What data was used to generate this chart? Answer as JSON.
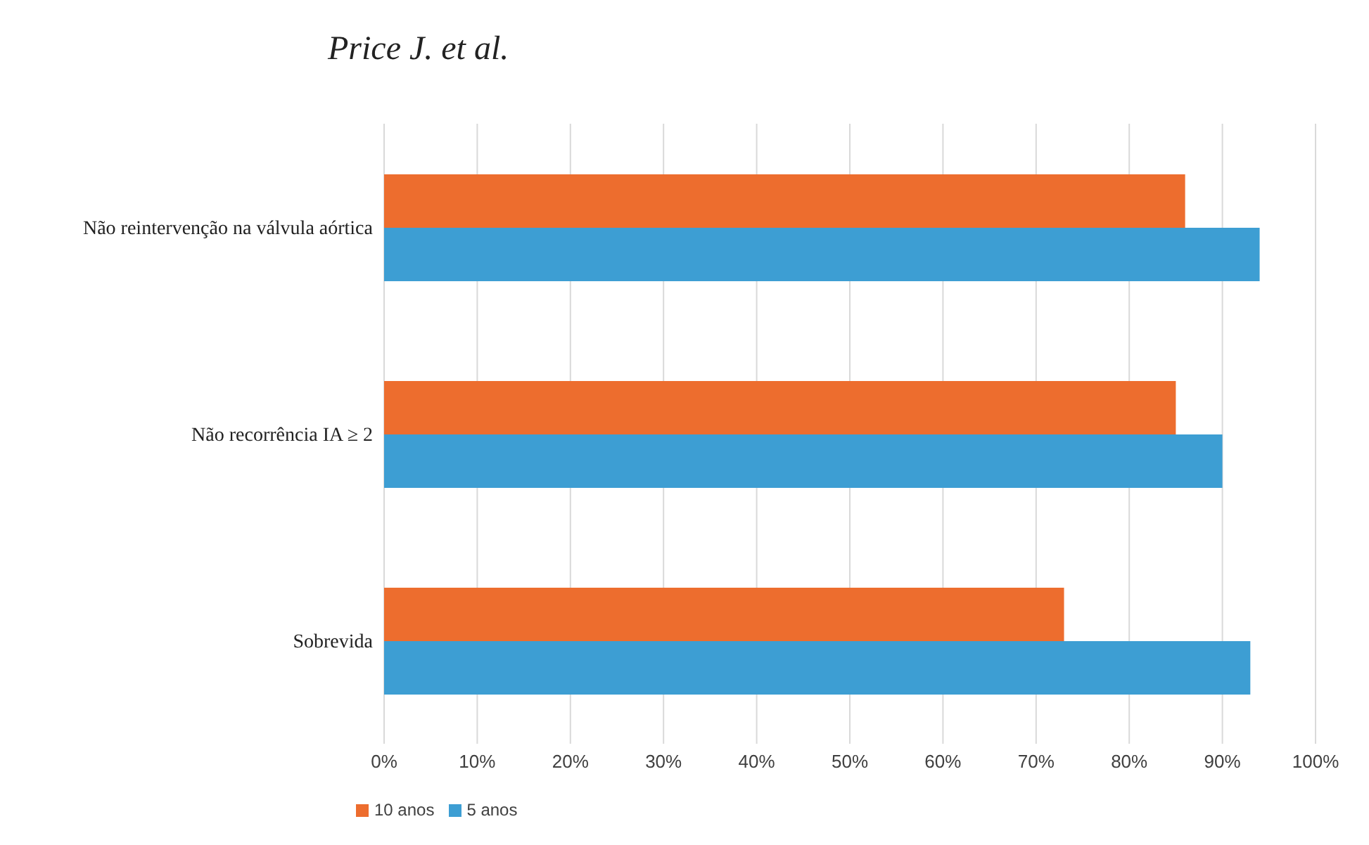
{
  "chart_data": {
    "type": "bar",
    "orientation": "horizontal",
    "title": "Price J. et al.",
    "categories": [
      "Não reintervenção na válvula aórtica",
      "Não recorrência IA ≥ 2",
      "Sobrevida"
    ],
    "series": [
      {
        "name": "10 anos",
        "color": "#ed6d2e",
        "values": [
          86,
          85,
          73
        ]
      },
      {
        "name": "5 anos",
        "color": "#3d9ed3",
        "values": [
          94,
          90,
          93
        ]
      }
    ],
    "xlim": [
      0,
      100
    ],
    "xticks": [
      {
        "value": 0,
        "label": "0%"
      },
      {
        "value": 10,
        "label": "10%"
      },
      {
        "value": 20,
        "label": "20%"
      },
      {
        "value": 30,
        "label": "30%"
      },
      {
        "value": 40,
        "label": "40%"
      },
      {
        "value": 50,
        "label": "50%"
      },
      {
        "value": 60,
        "label": "60%"
      },
      {
        "value": 70,
        "label": "70%"
      },
      {
        "value": 80,
        "label": "80%"
      },
      {
        "value": 90,
        "label": "90%"
      },
      {
        "value": 100,
        "label": "100%"
      }
    ],
    "grid": "x",
    "legend": "bottom left"
  }
}
